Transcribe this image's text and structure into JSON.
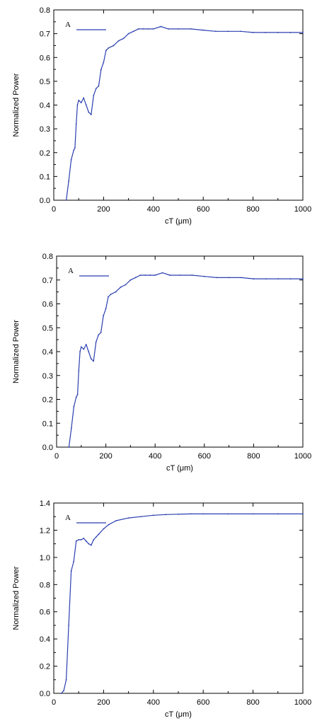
{
  "chart_data": [
    {
      "type": "line",
      "xlabel": "cT (μm)",
      "ylabel": "Normalized Power",
      "xlim": [
        0,
        1000
      ],
      "ylim": [
        0,
        0.8
      ],
      "xticks": [
        0,
        200,
        400,
        600,
        800,
        1000
      ],
      "yticks": [
        0.0,
        0.1,
        0.2,
        0.3,
        0.4,
        0.5,
        0.6,
        0.7,
        0.8
      ],
      "ytick_labels": [
        "0.0",
        "0.1",
        "0.2",
        "0.3",
        "0.4",
        "0.5",
        "0.6",
        "0.7",
        "0.8"
      ],
      "xtick_labels": [
        "0",
        "200",
        "400",
        "600",
        "800",
        "1000"
      ],
      "legend": "top-left",
      "legend_label": "A",
      "grid": false,
      "color": "#2b3fb0",
      "series": [
        {
          "x": [
            50,
            60,
            70,
            80,
            85,
            90,
            95,
            100,
            110,
            120,
            130,
            140,
            150,
            160,
            170,
            180,
            190,
            200,
            210,
            220,
            240,
            260,
            280,
            300,
            320,
            340,
            360,
            380,
            400,
            430,
            460,
            500,
            550,
            600,
            650,
            700,
            750,
            800,
            850,
            900,
            950,
            1000
          ],
          "y": [
            0.0,
            0.08,
            0.17,
            0.21,
            0.22,
            0.32,
            0.4,
            0.42,
            0.41,
            0.43,
            0.4,
            0.37,
            0.36,
            0.44,
            0.47,
            0.48,
            0.55,
            0.58,
            0.63,
            0.64,
            0.65,
            0.67,
            0.68,
            0.7,
            0.71,
            0.72,
            0.72,
            0.72,
            0.72,
            0.73,
            0.72,
            0.72,
            0.72,
            0.715,
            0.71,
            0.71,
            0.71,
            0.705,
            0.705,
            0.705,
            0.705,
            0.705
          ]
        }
      ]
    },
    {
      "type": "line",
      "xlabel": "cT (μm)",
      "ylabel": "Normalized Power",
      "xlim": [
        0,
        1000
      ],
      "ylim": [
        0,
        0.8
      ],
      "xticks": [
        0,
        200,
        400,
        600,
        800,
        1000
      ],
      "yticks": [
        0.0,
        0.1,
        0.2,
        0.3,
        0.4,
        0.5,
        0.6,
        0.7,
        0.8
      ],
      "ytick_labels": [
        "0.0",
        "0.1",
        "0.2",
        "0.3",
        "0.4",
        "0.5",
        "0.6",
        "0.7",
        "0.8"
      ],
      "xtick_labels": [
        "0",
        "200",
        "400",
        "600",
        "800",
        "1000"
      ],
      "legend": "top-left",
      "legend_label": "A",
      "grid": false,
      "color": "#2b3fb0",
      "series": [
        {
          "x": [
            50,
            60,
            70,
            80,
            85,
            90,
            95,
            100,
            110,
            120,
            130,
            140,
            150,
            160,
            170,
            180,
            190,
            200,
            210,
            220,
            240,
            260,
            280,
            300,
            320,
            340,
            360,
            380,
            400,
            430,
            460,
            500,
            550,
            600,
            650,
            700,
            750,
            800,
            850,
            900,
            950,
            1000
          ],
          "y": [
            0.0,
            0.08,
            0.17,
            0.21,
            0.22,
            0.32,
            0.4,
            0.42,
            0.41,
            0.43,
            0.4,
            0.37,
            0.36,
            0.44,
            0.47,
            0.48,
            0.55,
            0.58,
            0.63,
            0.64,
            0.65,
            0.67,
            0.68,
            0.7,
            0.71,
            0.72,
            0.72,
            0.72,
            0.72,
            0.73,
            0.72,
            0.72,
            0.72,
            0.715,
            0.71,
            0.71,
            0.71,
            0.705,
            0.705,
            0.705,
            0.705,
            0.705
          ]
        }
      ]
    },
    {
      "type": "line",
      "xlabel": "cT (μm)",
      "ylabel": "Normalized Power",
      "xlim": [
        0,
        1000
      ],
      "ylim": [
        0,
        1.4
      ],
      "xticks": [
        0,
        200,
        400,
        600,
        800,
        1000
      ],
      "yticks": [
        0.0,
        0.2,
        0.4,
        0.6,
        0.8,
        1.0,
        1.2,
        1.4
      ],
      "ytick_labels": [
        "0.0",
        "0.2",
        "0.4",
        "0.6",
        "0.8",
        "1.0",
        "1.2",
        "1.4"
      ],
      "xtick_labels": [
        "0",
        "200",
        "400",
        "600",
        "800",
        "1000"
      ],
      "legend": "top-left",
      "legend_label": "A",
      "grid": false,
      "color": "#2b3fb0",
      "series": [
        {
          "x": [
            30,
            40,
            50,
            60,
            70,
            80,
            90,
            100,
            110,
            120,
            130,
            140,
            150,
            160,
            170,
            180,
            200,
            220,
            250,
            300,
            350,
            400,
            450,
            500,
            550,
            600,
            700,
            800,
            900,
            1000
          ],
          "y": [
            0.0,
            0.02,
            0.1,
            0.5,
            0.9,
            0.97,
            1.12,
            1.13,
            1.13,
            1.14,
            1.12,
            1.1,
            1.09,
            1.13,
            1.15,
            1.17,
            1.21,
            1.24,
            1.27,
            1.29,
            1.3,
            1.31,
            1.315,
            1.318,
            1.32,
            1.32,
            1.32,
            1.32,
            1.32,
            1.32
          ]
        }
      ]
    }
  ]
}
